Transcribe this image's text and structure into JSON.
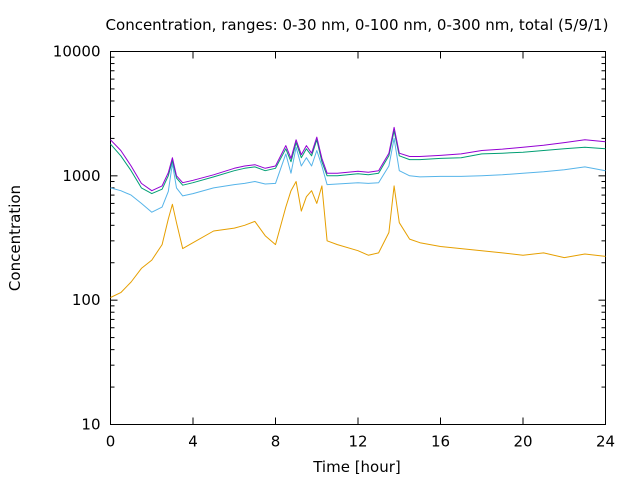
{
  "chart_data": {
    "type": "line",
    "title": "Concentration, ranges: 0-30 nm, 0-100 nm, 0-300 nm, total (5/9/1)",
    "xlabel": "Time [hour]",
    "ylabel": "Concentration",
    "xlim": [
      0,
      24
    ],
    "ylim": [
      10,
      10000
    ],
    "yscale": "log",
    "grid": false,
    "legend": "none",
    "x_ticks": [
      0,
      4,
      8,
      12,
      16,
      20,
      24
    ],
    "y_ticks": [
      10,
      100,
      1000,
      10000
    ],
    "x": [
      0,
      0.5,
      1,
      1.5,
      2,
      2.5,
      2.8,
      3,
      3.2,
      3.5,
      4,
      5,
      6,
      6.5,
      7,
      7.5,
      8,
      8.5,
      8.75,
      9,
      9.25,
      9.5,
      9.75,
      10,
      10.25,
      10.5,
      11,
      12,
      12.5,
      13,
      13.5,
      13.75,
      14,
      14.5,
      15,
      16,
      17,
      18,
      19,
      20,
      21,
      22,
      23,
      24
    ],
    "series": [
      {
        "values": [
          105,
          115,
          140,
          180,
          210,
          280,
          450,
          590,
          420,
          260,
          290,
          360,
          380,
          400,
          430,
          330,
          280,
          560,
          760,
          900,
          520,
          680,
          760,
          600,
          830,
          300,
          280,
          250,
          230,
          240,
          350,
          830,
          420,
          310,
          290,
          270,
          260,
          250,
          240,
          230,
          240,
          220,
          235,
          225
        ],
        "color": "#e69f00"
      },
      {
        "values": [
          800,
          760,
          700,
          600,
          510,
          560,
          750,
          1260,
          800,
          690,
          720,
          800,
          850,
          870,
          900,
          860,
          870,
          1500,
          1050,
          1700,
          1200,
          1400,
          1200,
          1600,
          1200,
          850,
          860,
          880,
          870,
          880,
          1200,
          2000,
          1100,
          1000,
          980,
          990,
          990,
          1000,
          1020,
          1050,
          1080,
          1120,
          1180,
          1100
        ],
        "color": "#56b4e9"
      },
      {
        "values": [
          1800,
          1450,
          1100,
          800,
          720,
          780,
          1000,
          1330,
          960,
          840,
          880,
          980,
          1100,
          1150,
          1180,
          1100,
          1150,
          1650,
          1300,
          1850,
          1400,
          1650,
          1450,
          1950,
          1300,
          1000,
          1000,
          1040,
          1020,
          1050,
          1450,
          2300,
          1450,
          1350,
          1350,
          1380,
          1400,
          1500,
          1520,
          1550,
          1600,
          1650,
          1700,
          1650
        ],
        "color": "#009e73"
      },
      {
        "values": [
          1950,
          1600,
          1200,
          870,
          760,
          830,
          1060,
          1400,
          1000,
          880,
          920,
          1020,
          1150,
          1200,
          1230,
          1150,
          1200,
          1750,
          1380,
          1950,
          1480,
          1750,
          1520,
          2050,
          1380,
          1050,
          1050,
          1090,
          1070,
          1100,
          1520,
          2450,
          1520,
          1430,
          1430,
          1460,
          1500,
          1600,
          1640,
          1700,
          1760,
          1850,
          1950,
          1880
        ],
        "color": "#9400d3"
      }
    ]
  }
}
